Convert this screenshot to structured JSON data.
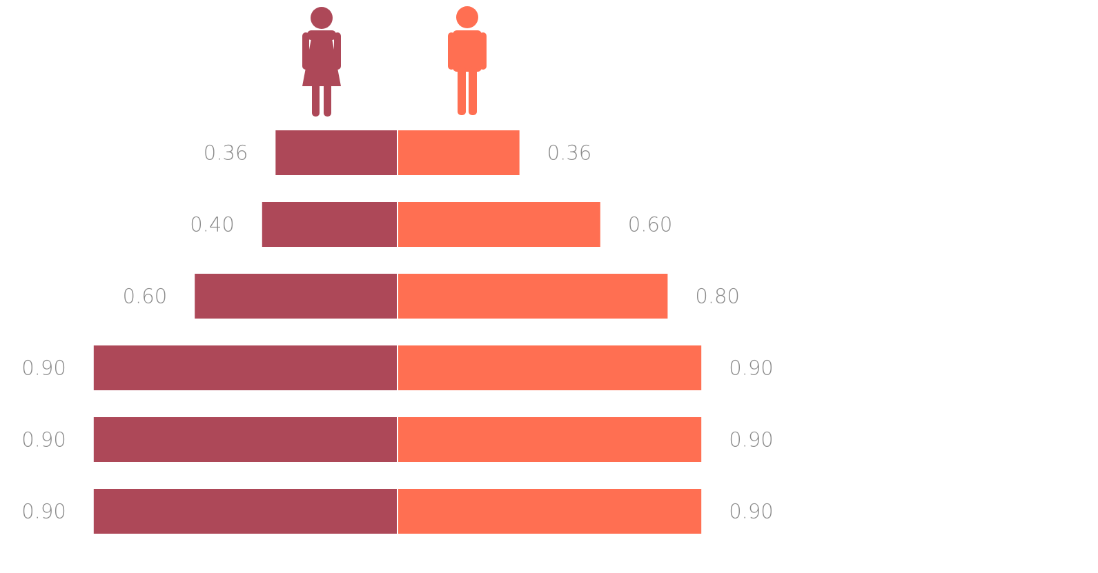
{
  "colors": {
    "female": "#AD4858",
    "male": "#FF6F52",
    "label": "#8a8a8a",
    "divider": "#ffffff"
  },
  "icons": {
    "female": "female-person-icon",
    "male": "male-person-icon"
  },
  "chart_data": {
    "type": "bar",
    "orientation": "horizontal-diverging",
    "title": "",
    "xlabel": "",
    "ylabel": "",
    "xlim": [
      0,
      1
    ],
    "grid": false,
    "legend": "icons above bars (female left, male right)",
    "rows": 6,
    "series": [
      {
        "side": "left",
        "icon": "female-person-icon",
        "color": "#AD4858",
        "values": [
          0.36,
          0.4,
          0.6,
          0.9,
          0.9,
          0.9
        ],
        "labels": [
          "0.36",
          "0.40",
          "0.60",
          "0.90",
          "0.90",
          "0.90"
        ]
      },
      {
        "side": "right",
        "icon": "male-person-icon",
        "color": "#FF6F52",
        "values": [
          0.36,
          0.6,
          0.8,
          0.9,
          0.9,
          0.9
        ],
        "labels": [
          "0.36",
          "0.60",
          "0.80",
          "0.90",
          "0.90",
          "0.90"
        ]
      }
    ]
  }
}
